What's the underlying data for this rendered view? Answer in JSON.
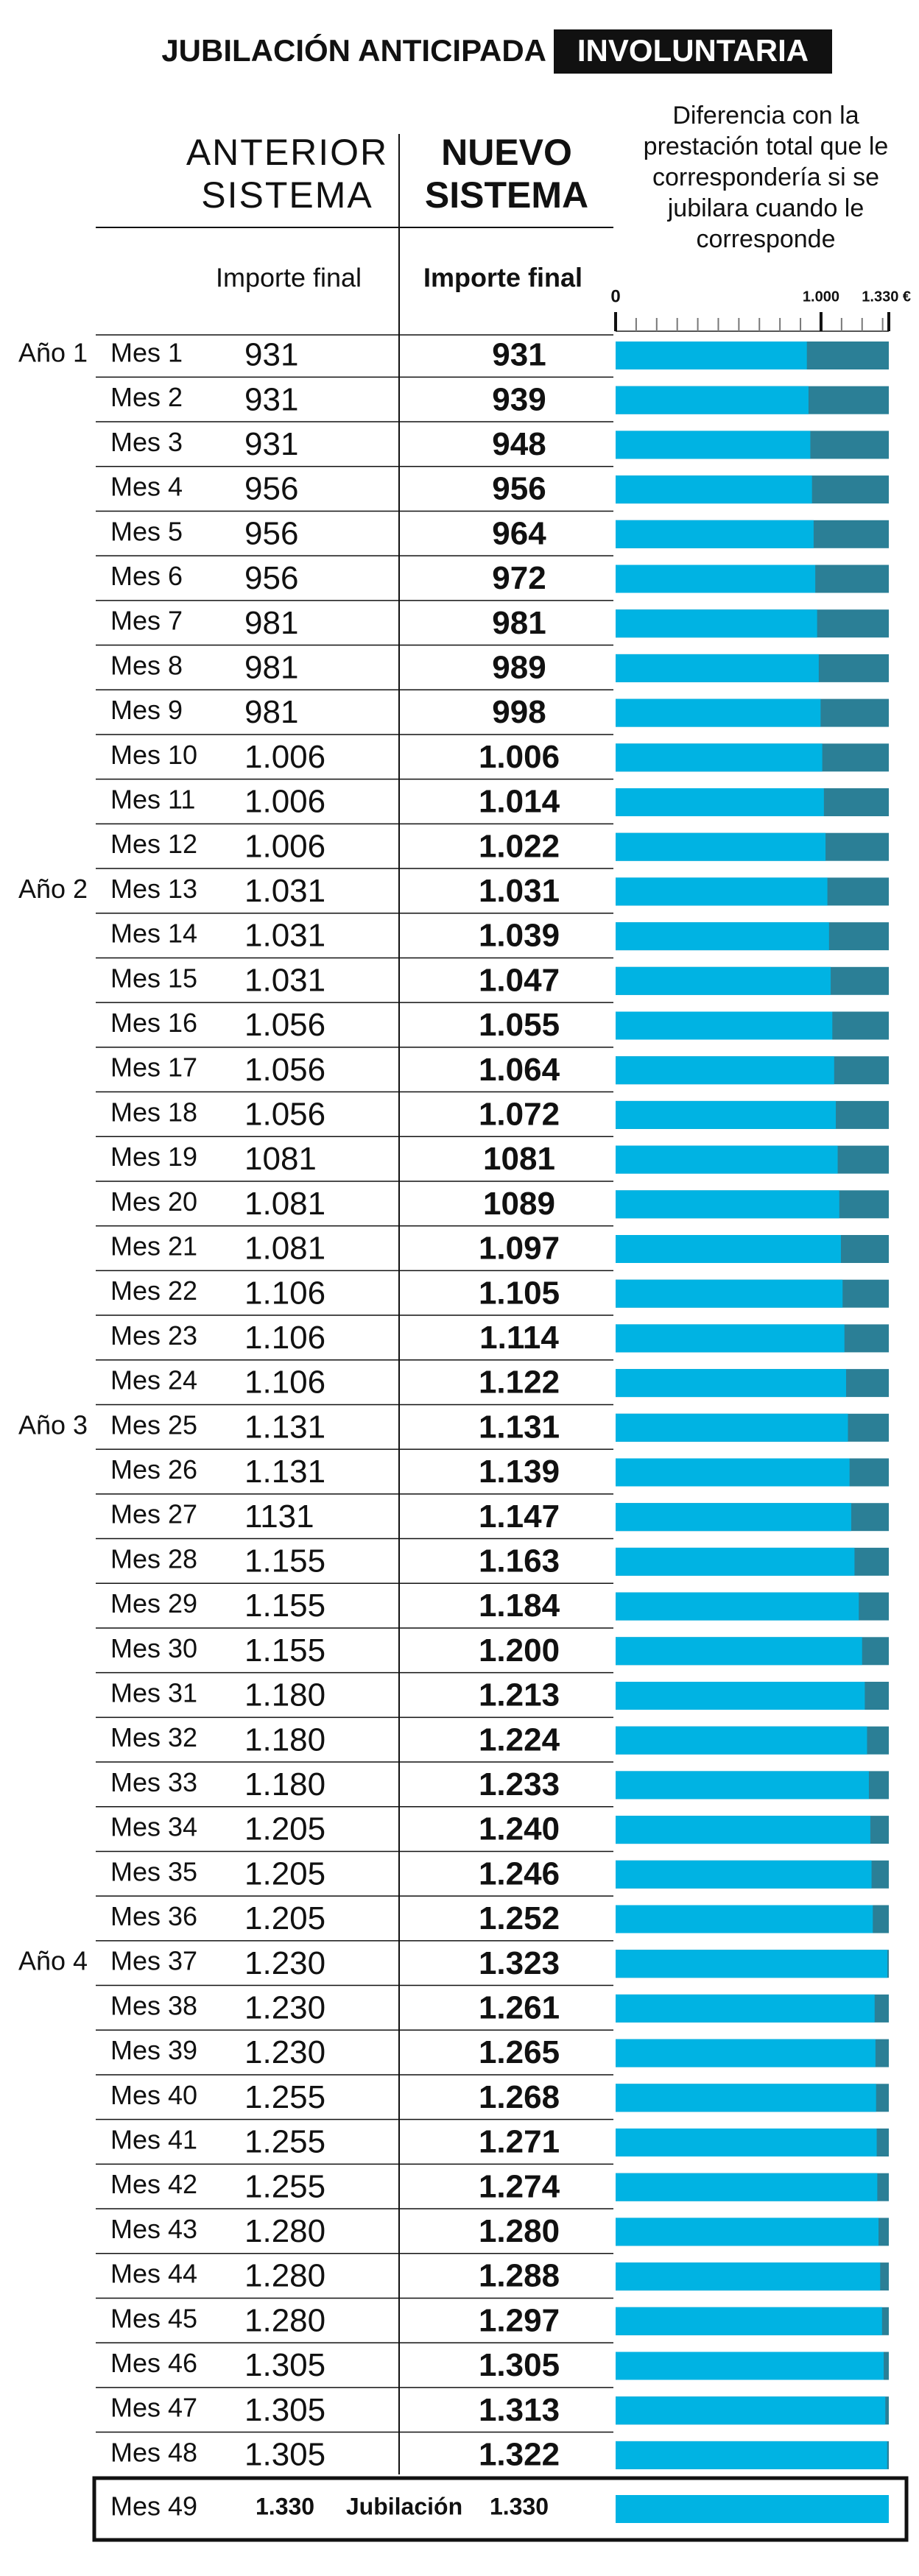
{
  "chart_data": {
    "type": "bar",
    "title": "JUBILACIÓN ANTICIPADA",
    "title_highlight": "INVOLUNTARIA",
    "old_header": "ANTERIOR SISTEMA",
    "new_header": "NUEVO SISTEMA",
    "note": "Diferencia con la prestación total que le correspondería si se jubilara cuando le corresponde",
    "old_subheader": "Importe final",
    "new_subheader": "Importe final",
    "year_labels": [
      "Año 1",
      null,
      null,
      null,
      null,
      null,
      null,
      null,
      null,
      null,
      null,
      null,
      "Año 2",
      null,
      null,
      null,
      null,
      null,
      null,
      null,
      null,
      null,
      null,
      null,
      "Año 3",
      null,
      null,
      null,
      null,
      null,
      null,
      null,
      null,
      null,
      null,
      null,
      "Año 4",
      null,
      null,
      null,
      null,
      null,
      null,
      null,
      null,
      null,
      null,
      null,
      null
    ],
    "categories": [
      "Mes 1",
      "Mes 2",
      "Mes 3",
      "Mes 4",
      "Mes 5",
      "Mes 6",
      "Mes 7",
      "Mes 8",
      "Mes 9",
      "Mes 10",
      "Mes 11",
      "Mes 12",
      "Mes 13",
      "Mes 14",
      "Mes 15",
      "Mes 16",
      "Mes 17",
      "Mes 18",
      "Mes 19",
      "Mes 20",
      "Mes 21",
      "Mes 22",
      "Mes 23",
      "Mes 24",
      "Mes 25",
      "Mes 26",
      "Mes 27",
      "Mes 28",
      "Mes 29",
      "Mes 30",
      "Mes 31",
      "Mes 32",
      "Mes 33",
      "Mes 34",
      "Mes 35",
      "Mes 36",
      "Mes 37",
      "Mes 38",
      "Mes 39",
      "Mes 40",
      "Mes 41",
      "Mes 42",
      "Mes 43",
      "Mes 44",
      "Mes 45",
      "Mes 46",
      "Mes 47",
      "Mes 48",
      "Mes 49"
    ],
    "old_labels": [
      "931",
      "931",
      "931",
      "956",
      "956",
      "956",
      "981",
      "981",
      "981",
      "1.006",
      "1.006",
      "1.006",
      "1.031",
      "1.031",
      "1.031",
      "1.056",
      "1.056",
      "1.056",
      "1081",
      "1.081",
      "1.081",
      "1.106",
      "1.106",
      "1.106",
      "1.131",
      "1.131",
      "1131",
      "1.155",
      "1.155",
      "1.155",
      "1.180",
      "1.180",
      "1.180",
      "1.205",
      "1.205",
      "1.205",
      "1.230",
      "1.230",
      "1.230",
      "1.255",
      "1.255",
      "1.255",
      "1.280",
      "1.280",
      "1.280",
      "1.305",
      "1.305",
      "1.305",
      "1.330"
    ],
    "values": [
      931,
      939,
      948,
      956,
      964,
      972,
      981,
      989,
      998,
      1006,
      1014,
      1022,
      1031,
      1039,
      1047,
      1055,
      1064,
      1072,
      1081,
      1089,
      1097,
      1105,
      1114,
      1122,
      1131,
      1139,
      1147,
      1163,
      1184,
      1200,
      1213,
      1224,
      1233,
      1240,
      1246,
      1252,
      1323,
      1261,
      1265,
      1268,
      1271,
      1274,
      1280,
      1288,
      1297,
      1305,
      1313,
      1322,
      1330
    ],
    "value_labels": [
      "931",
      "939",
      "948",
      "956",
      "964",
      "972",
      "981",
      "989",
      "998",
      "1.006",
      "1.014",
      "1.022",
      "1.031",
      "1.039",
      "1.047",
      "1.055",
      "1.064",
      "1.072",
      "1081",
      "1089",
      "1.097",
      "1.105",
      "1.114",
      "1.122",
      "1.131",
      "1.139",
      "1.147",
      "1.163",
      "1.184",
      "1.200",
      "1.213",
      "1.224",
      "1.233",
      "1.240",
      "1.246",
      "1.252",
      "1.323",
      "1.261",
      "1.265",
      "1.268",
      "1.271",
      "1.274",
      "1.280",
      "1.288",
      "1.297",
      "1.305",
      "1.313",
      "1.322",
      "1.330"
    ],
    "final_label": "Jubilación",
    "xlim": [
      0,
      1330
    ],
    "xticks": [
      0,
      {
        "value": 1000,
        "label": "1.000"
      },
      {
        "value": 1330,
        "label": "1.330 €"
      }
    ],
    "minor_xticks": [
      100,
      200,
      300,
      400,
      500,
      600,
      700,
      800,
      900,
      1100,
      1200,
      1300
    ],
    "color": "#00b3e3",
    "remainder_color": "#2b7f96"
  }
}
